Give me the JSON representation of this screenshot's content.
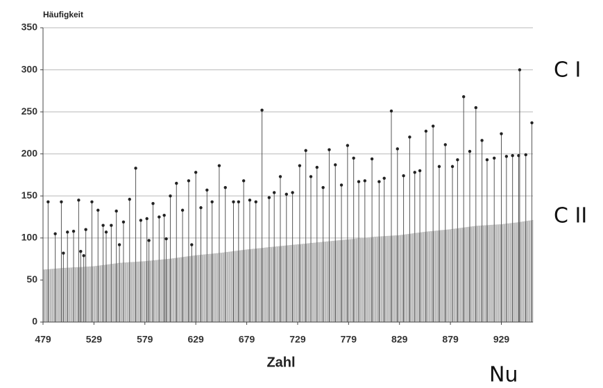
{
  "chart_data": {
    "type": "stem",
    "y_label": "Häufigkeit",
    "x_label": "Zahl",
    "annotations": [
      "C I",
      "C II",
      "Nu"
    ],
    "xlim": [
      479,
      960
    ],
    "ylim": [
      0,
      350
    ],
    "xticks": [
      479,
      529,
      579,
      629,
      679,
      729,
      779,
      829,
      879,
      929
    ],
    "yticks": [
      0,
      50,
      100,
      150,
      200,
      250,
      300,
      350
    ],
    "grid": true,
    "series": [
      {
        "style": "area",
        "color": "#c4c4c4",
        "x": [
          479,
          499,
          529,
          554,
          579,
          604,
          629,
          654,
          679,
          704,
          729,
          754,
          779,
          804,
          829,
          854,
          879,
          904,
          929,
          944,
          960
        ],
        "values": [
          62,
          64,
          66,
          70,
          72,
          75,
          79,
          82,
          86,
          89,
          92,
          95,
          98,
          101,
          103,
          107,
          110,
          114,
          116,
          118,
          121
        ]
      },
      {
        "style": "stem",
        "color": "#555555",
        "x": [
          484,
          491,
          497,
          499,
          503,
          509,
          514,
          516,
          519,
          521,
          527,
          533,
          538,
          541,
          546,
          551,
          554,
          558,
          564,
          570,
          575,
          581,
          583,
          587,
          593,
          598,
          600,
          604,
          610,
          616,
          622,
          625,
          629,
          634,
          640,
          645,
          652,
          658,
          666,
          671,
          676,
          682,
          688,
          694,
          701,
          706,
          712,
          718,
          724,
          731,
          737,
          742,
          748,
          754,
          760,
          766,
          772,
          778,
          784,
          789,
          795,
          802,
          809,
          814,
          821,
          827,
          833,
          839,
          844,
          849,
          855,
          862,
          868,
          874,
          881,
          886,
          892,
          898,
          904,
          910,
          915,
          922,
          929,
          934,
          940,
          946,
          947,
          953,
          959
        ],
        "values": [
          143,
          105,
          143,
          82,
          107,
          108,
          145,
          84,
          79,
          110,
          143,
          133,
          115,
          107,
          115,
          132,
          92,
          119,
          146,
          183,
          121,
          123,
          97,
          141,
          125,
          127,
          99,
          150,
          165,
          133,
          168,
          92,
          178,
          136,
          157,
          143,
          186,
          160,
          143,
          143,
          168,
          145,
          143,
          252,
          148,
          154,
          173,
          152,
          154,
          186,
          204,
          173,
          184,
          160,
          205,
          187,
          163,
          210,
          195,
          167,
          168,
          194,
          167,
          171,
          251,
          206,
          174,
          220,
          178,
          180,
          227,
          233,
          185,
          211,
          185,
          193,
          268,
          203,
          255,
          216,
          193,
          195,
          224,
          197,
          198,
          198,
          300,
          199,
          237
        ]
      }
    ]
  }
}
